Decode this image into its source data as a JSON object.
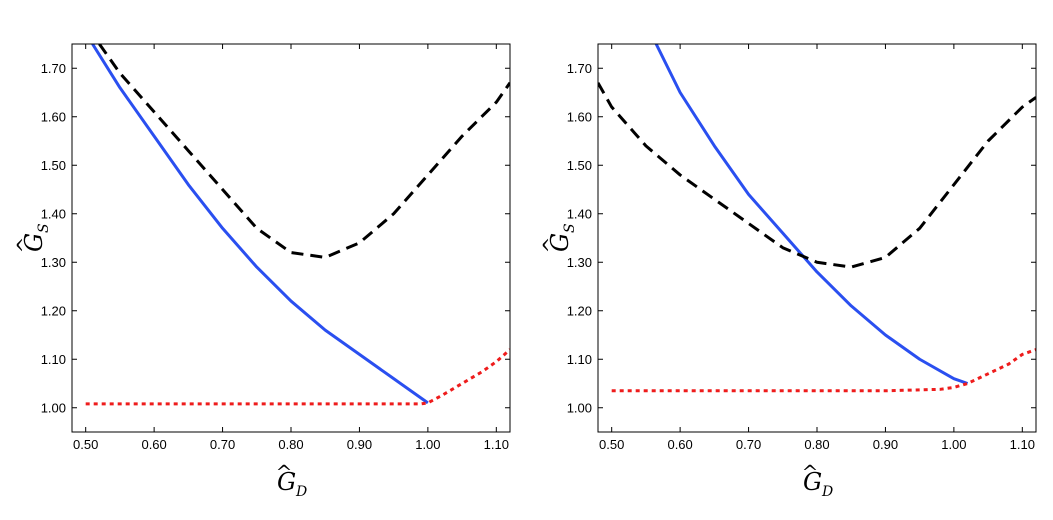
{
  "chart_data": [
    {
      "type": "line",
      "title": "",
      "xlabel": "Ĝ_D",
      "ylabel": "Ĝ_S",
      "xlabel_parts": {
        "letter": "G",
        "hat": "^",
        "sub": "D"
      },
      "ylabel_parts": {
        "letter": "G",
        "hat": "^",
        "sub": "S"
      },
      "xlim": [
        0.48,
        1.12
      ],
      "ylim": [
        0.95,
        1.75
      ],
      "grid": false,
      "xticks": [
        0.5,
        0.6,
        0.7,
        0.8,
        0.9,
        1.0,
        1.1
      ],
      "xtick_labels": [
        "0.50",
        "0.60",
        "0.70",
        "0.80",
        "0.90",
        "1.00",
        "1.10"
      ],
      "yticks": [
        1.0,
        1.1,
        1.2,
        1.3,
        1.4,
        1.5,
        1.6,
        1.7
      ],
      "ytick_labels": [
        "1.00",
        "1.10",
        "1.20",
        "1.30",
        "1.40",
        "1.50",
        "1.60",
        "1.70"
      ],
      "series": [
        {
          "name": "solid-blue",
          "style": "solid",
          "color": "#2a4ff0",
          "x": [
            0.51,
            0.55,
            0.6,
            0.65,
            0.7,
            0.75,
            0.8,
            0.85,
            0.9,
            0.95,
            1.0
          ],
          "y": [
            1.75,
            1.66,
            1.56,
            1.46,
            1.37,
            1.29,
            1.22,
            1.16,
            1.11,
            1.06,
            1.01
          ]
        },
        {
          "name": "dashed-black",
          "style": "dashed",
          "color": "#000000",
          "x": [
            0.52,
            0.55,
            0.6,
            0.65,
            0.7,
            0.75,
            0.8,
            0.85,
            0.9,
            0.95,
            1.0,
            1.05,
            1.1,
            1.12
          ],
          "y": [
            1.75,
            1.69,
            1.61,
            1.53,
            1.45,
            1.37,
            1.32,
            1.31,
            1.34,
            1.4,
            1.48,
            1.56,
            1.63,
            1.67
          ]
        },
        {
          "name": "dotted-red",
          "style": "dotted",
          "color": "#ee1c1c",
          "x": [
            0.5,
            0.6,
            0.7,
            0.8,
            0.9,
            0.99,
            1.0,
            1.02,
            1.05,
            1.08,
            1.1,
            1.12
          ],
          "y": [
            1.008,
            1.008,
            1.008,
            1.008,
            1.008,
            1.008,
            1.01,
            1.025,
            1.05,
            1.075,
            1.095,
            1.12
          ]
        }
      ]
    },
    {
      "type": "line",
      "title": "",
      "xlabel": "Ĝ_D",
      "ylabel": "Ĝ_S",
      "xlabel_parts": {
        "letter": "G",
        "hat": "^",
        "sub": "D"
      },
      "ylabel_parts": {
        "letter": "G",
        "hat": "^",
        "sub": "S"
      },
      "xlim": [
        0.48,
        1.12
      ],
      "ylim": [
        0.95,
        1.75
      ],
      "grid": false,
      "xticks": [
        0.5,
        0.6,
        0.7,
        0.8,
        0.9,
        1.0,
        1.1
      ],
      "xtick_labels": [
        "0.50",
        "0.60",
        "0.70",
        "0.80",
        "0.90",
        "1.00",
        "1.10"
      ],
      "yticks": [
        1.0,
        1.1,
        1.2,
        1.3,
        1.4,
        1.5,
        1.6,
        1.7
      ],
      "ytick_labels": [
        "1.00",
        "1.10",
        "1.20",
        "1.30",
        "1.40",
        "1.50",
        "1.60",
        "1.70"
      ],
      "series": [
        {
          "name": "solid-blue",
          "style": "solid",
          "color": "#2a4ff0",
          "x": [
            0.565,
            0.6,
            0.65,
            0.7,
            0.75,
            0.8,
            0.85,
            0.9,
            0.95,
            1.0,
            1.02
          ],
          "y": [
            1.75,
            1.65,
            1.54,
            1.44,
            1.36,
            1.28,
            1.21,
            1.15,
            1.1,
            1.06,
            1.05
          ]
        },
        {
          "name": "dashed-black",
          "style": "dashed",
          "color": "#000000",
          "x": [
            0.48,
            0.5,
            0.55,
            0.6,
            0.65,
            0.7,
            0.75,
            0.8,
            0.85,
            0.9,
            0.95,
            1.0,
            1.05,
            1.1,
            1.12
          ],
          "y": [
            1.67,
            1.62,
            1.54,
            1.48,
            1.43,
            1.38,
            1.33,
            1.3,
            1.29,
            1.31,
            1.37,
            1.46,
            1.55,
            1.62,
            1.64
          ]
        },
        {
          "name": "dotted-red",
          "style": "dotted",
          "color": "#ee1c1c",
          "x": [
            0.5,
            0.6,
            0.7,
            0.8,
            0.9,
            0.98,
            1.0,
            1.02,
            1.05,
            1.08,
            1.1,
            1.12
          ],
          "y": [
            1.035,
            1.035,
            1.035,
            1.035,
            1.035,
            1.038,
            1.042,
            1.05,
            1.07,
            1.09,
            1.11,
            1.12
          ]
        }
      ]
    }
  ]
}
